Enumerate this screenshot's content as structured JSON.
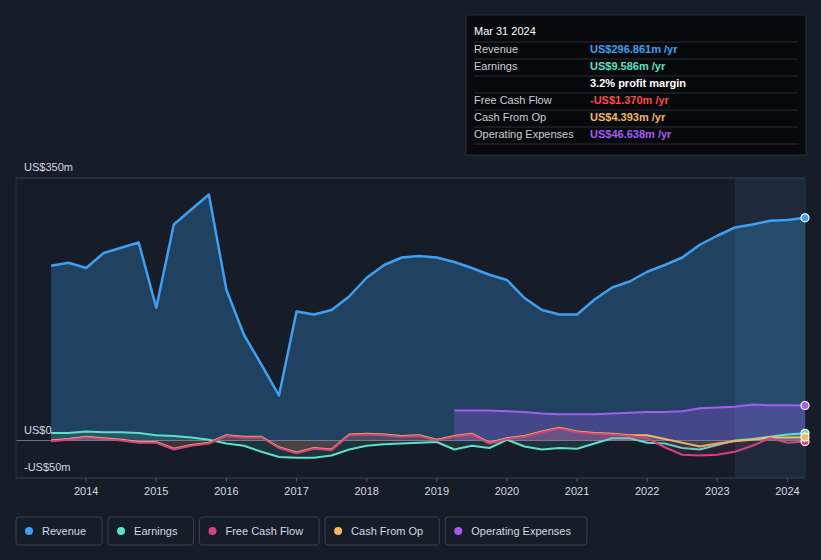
{
  "chart_data": {
    "type": "line",
    "x": [
      2013.5,
      2013.75,
      2014,
      2014.25,
      2014.5,
      2014.75,
      2015,
      2015.25,
      2015.5,
      2015.75,
      2016,
      2016.25,
      2016.5,
      2016.75,
      2017,
      2017.25,
      2017.5,
      2017.75,
      2018,
      2018.25,
      2018.5,
      2018.75,
      2019,
      2019.25,
      2019.5,
      2019.75,
      2020,
      2020.25,
      2020.5,
      2020.75,
      2021,
      2021.25,
      2021.5,
      2021.75,
      2022,
      2022.25,
      2022.5,
      2022.75,
      2023,
      2023.25,
      2023.5,
      2023.75,
      2024,
      2024.25
    ],
    "xlim": [
      2013.0,
      2024.25
    ],
    "xticks": [
      2014,
      2015,
      2016,
      2017,
      2018,
      2019,
      2020,
      2021,
      2022,
      2023,
      2024
    ],
    "ylim": [
      -50,
      350
    ],
    "yticks": [
      {
        "value": -50,
        "label": "-US$50m"
      },
      {
        "value": 0,
        "label": "US$0"
      },
      {
        "value": 350,
        "label": "US$350m"
      }
    ],
    "grid": true,
    "series": [
      {
        "name": "Revenue",
        "color": "#3ea0f0",
        "values": [
          233,
          237,
          230,
          250,
          257,
          264,
          177,
          288,
          308,
          328,
          201,
          141,
          101,
          60,
          172,
          168,
          174,
          192,
          217,
          234,
          244,
          246,
          244,
          238,
          230,
          221,
          214,
          190,
          174,
          168,
          168,
          188,
          204,
          212,
          225,
          234,
          244,
          261,
          273,
          284,
          288,
          293,
          294,
          296.861
        ]
      },
      {
        "name": "Earnings",
        "color": "#5de0c5",
        "values": [
          10,
          10,
          12,
          11,
          11,
          10,
          7,
          6,
          4,
          1,
          -4,
          -7,
          -15,
          -22,
          -23,
          -23,
          -20,
          -12,
          -7,
          -5,
          -4,
          -3,
          -2,
          -12,
          -7,
          -10,
          1,
          -8,
          -12,
          -10,
          -11,
          -4,
          3,
          3,
          -3,
          -4,
          -10,
          -12,
          -6,
          0,
          2,
          5,
          8,
          9.586
        ]
      },
      {
        "name": "Free Cash Flow",
        "color": "#d0457e",
        "values": [
          -1,
          1,
          4,
          2,
          0,
          -3,
          -3,
          -12,
          -7,
          -4,
          6,
          4,
          4,
          -10,
          -17,
          -11,
          -13,
          7,
          8,
          7,
          5,
          6,
          0,
          5,
          8,
          -4,
          2,
          5,
          11,
          16,
          11,
          9,
          8,
          6,
          3,
          -9,
          -19,
          -20,
          -19,
          -15,
          -7,
          3,
          -3,
          -1.37
        ]
      },
      {
        "name": "Cash From Op",
        "color": "#f4b860",
        "values": [
          0,
          2,
          5,
          3,
          1,
          -2,
          -2,
          -11,
          -6,
          -3,
          7,
          5,
          5,
          -9,
          -16,
          -10,
          -12,
          8,
          9,
          8,
          6,
          7,
          1,
          6,
          9,
          -3,
          3,
          6,
          12,
          17,
          12,
          10,
          9,
          7,
          7,
          2,
          -3,
          -8,
          -4,
          -1,
          1,
          4,
          4,
          4.393
        ]
      },
      {
        "name": "Operating Expenses",
        "color": "#a55cf5",
        "values": [
          null,
          null,
          null,
          null,
          null,
          null,
          null,
          null,
          null,
          null,
          null,
          null,
          null,
          null,
          null,
          null,
          null,
          null,
          null,
          null,
          null,
          null,
          null,
          40,
          40,
          40,
          39,
          38,
          36,
          35,
          35,
          35,
          36,
          37,
          38,
          38,
          39,
          43,
          44,
          45,
          48,
          47,
          47,
          46.638
        ]
      }
    ],
    "annotations": {
      "tooltip": {
        "date": "Mar 31 2024",
        "rows": [
          {
            "label": "Revenue",
            "value": "US$296.861m /yr",
            "color": "#3ea0f0"
          },
          {
            "label": "Earnings",
            "value": "US$9.586m /yr",
            "color": "#5de0c5"
          },
          {
            "label": "Free Cash Flow",
            "value": "-US$1.370m /yr",
            "color": "#ff4a4a"
          },
          {
            "label": "Cash From Op",
            "value": "US$4.393m /yr",
            "color": "#f4b860"
          },
          {
            "label": "Operating Expenses",
            "value": "US$46.638m /yr",
            "color": "#a55cf5"
          }
        ],
        "profit_margin": "3.2% profit margin"
      }
    }
  }
}
